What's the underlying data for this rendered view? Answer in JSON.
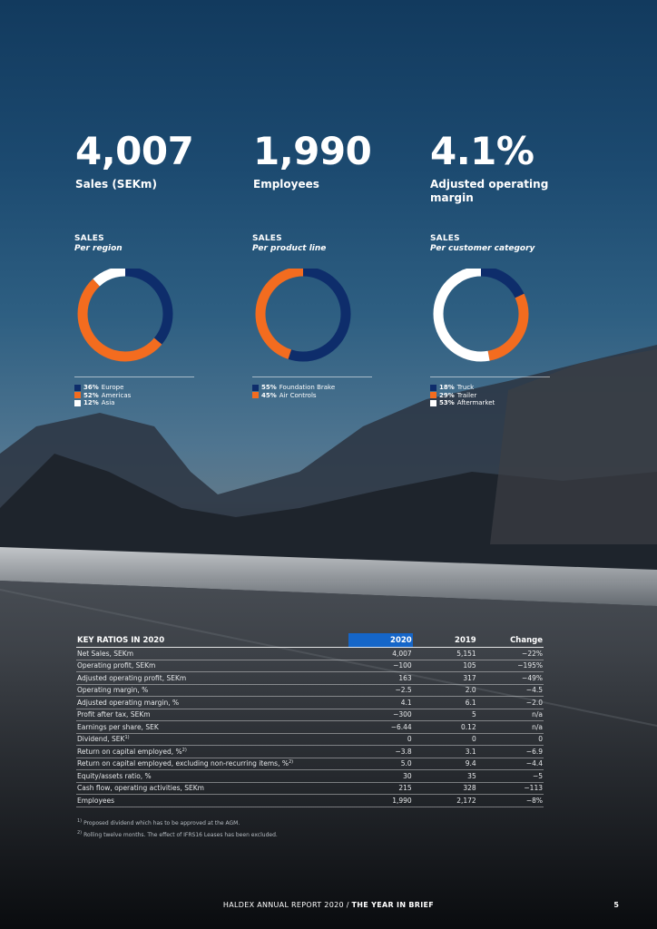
{
  "kpis": [
    {
      "value": "4,007",
      "label": "Sales (SEKm)"
    },
    {
      "value": "1,990",
      "label": "Employees"
    },
    {
      "value": "4.1%",
      "label": "Adjusted operating margin"
    }
  ],
  "charts": [
    {
      "title": "SALES",
      "subtitle": "Per region",
      "segments": [
        {
          "pct": "36%",
          "label": "Europe",
          "value": 36,
          "color": "#0e2d6b"
        },
        {
          "pct": "52%",
          "label": "Americas",
          "value": 52,
          "color": "#f36c1f"
        },
        {
          "pct": "12%",
          "label": "Asia",
          "value": 12,
          "color": "#ffffff"
        }
      ]
    },
    {
      "title": "SALES",
      "subtitle": "Per product line",
      "segments": [
        {
          "pct": "55%",
          "label": "Foundation Brake",
          "value": 55,
          "color": "#0e2d6b"
        },
        {
          "pct": "45%",
          "label": "Air Controls",
          "value": 45,
          "color": "#f36c1f"
        }
      ]
    },
    {
      "title": "SALES",
      "subtitle": "Per customer category",
      "segments": [
        {
          "pct": "18%",
          "label": "Truck",
          "value": 18,
          "color": "#0e2d6b"
        },
        {
          "pct": "29%",
          "label": "Trailer",
          "value": 29,
          "color": "#f36c1f"
        },
        {
          "pct": "53%",
          "label": "Aftermarket",
          "value": 53,
          "color": "#ffffff"
        }
      ]
    }
  ],
  "table": {
    "title": "KEY RATIOS IN 2020",
    "headers": [
      "2020",
      "2019",
      "Change"
    ],
    "highlight_color": "#1566c9",
    "rows": [
      {
        "label": "Net Sales, SEKm",
        "sup": "",
        "v2020": "4,007",
        "v2019": "5,151",
        "change": "−22%"
      },
      {
        "label": "Operating profit, SEKm",
        "sup": "",
        "v2020": "−100",
        "v2019": "105",
        "change": "−195%"
      },
      {
        "label": "Adjusted operating profit, SEKm",
        "sup": "",
        "v2020": "163",
        "v2019": "317",
        "change": "−49%"
      },
      {
        "label": "Operating margin, %",
        "sup": "",
        "v2020": "−2.5",
        "v2019": "2.0",
        "change": "−4.5"
      },
      {
        "label": "Adjusted operating margin, %",
        "sup": "",
        "v2020": "4.1",
        "v2019": "6.1",
        "change": "−2.0"
      },
      {
        "label": "Profit after tax, SEKm",
        "sup": "",
        "v2020": "−300",
        "v2019": "5",
        "change": "n/a"
      },
      {
        "label": "Earnings per share, SEK",
        "sup": "",
        "v2020": "−6.44",
        "v2019": "0.12",
        "change": "n/a"
      },
      {
        "label": "Dividend, SEK",
        "sup": "1)",
        "v2020": "0",
        "v2019": "0",
        "change": "0"
      },
      {
        "label": "Return on capital employed, %",
        "sup": "2)",
        "v2020": "−3.8",
        "v2019": "3.1",
        "change": "−6.9"
      },
      {
        "label": "Return on capital employed, excluding non-recurring items, %",
        "sup": "2)",
        "v2020": "5.0",
        "v2019": "9.4",
        "change": "−4.4"
      },
      {
        "label": "Equity/assets ratio, %",
        "sup": "",
        "v2020": "30",
        "v2019": "35",
        "change": "−5"
      },
      {
        "label": "Cash flow, operating activities, SEKm",
        "sup": "",
        "v2020": "215",
        "v2019": "328",
        "change": "−113"
      },
      {
        "label": "Employees",
        "sup": "",
        "v2020": "1,990",
        "v2019": "2,172",
        "change": "−8%"
      }
    ]
  },
  "footnotes": [
    {
      "mark": "1)",
      "text": "Proposed dividend which has to be approved at the AGM."
    },
    {
      "mark": "2)",
      "text": "Rolling twelve months. The effect of IFRS16 Leases has been excluded."
    }
  ],
  "footer": {
    "prefix": "HALDEX ANNUAL REPORT 2020 / ",
    "section": "THE YEAR IN BRIEF",
    "page": "5"
  }
}
